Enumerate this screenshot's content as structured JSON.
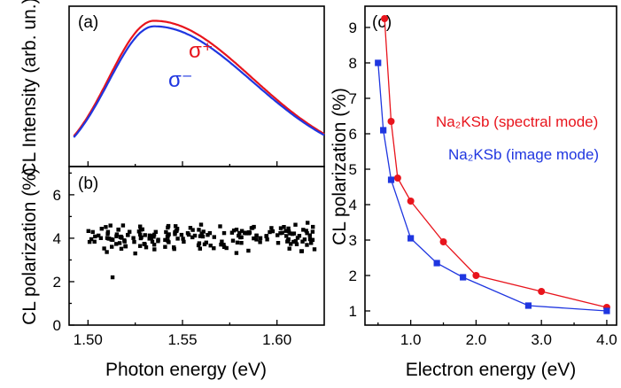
{
  "colors": {
    "red": "#e8141c",
    "blue": "#1f36e0",
    "black": "#000000"
  },
  "panels": {
    "a": {
      "label": "(a)",
      "ylabel": "CL Intensity (arb. un.)",
      "sigma_plus": "σ⁺",
      "sigma_minus": "σ⁻"
    },
    "b": {
      "label": "(b)",
      "ylabel": "CL polarization (%)",
      "xlabel": "Photon energy (eV)"
    },
    "c": {
      "label": "(c)",
      "ylabel": "CL polarization (%)",
      "xlabel": "Electron energy (eV)"
    }
  },
  "chart_data": [
    {
      "panel": "a",
      "type": "line",
      "xlim": [
        1.49,
        1.625
      ],
      "xticks": [
        1.5,
        1.55,
        1.6
      ],
      "series": [
        {
          "name": "σ⁺",
          "color": "#e8141c",
          "peak_x": 1.535,
          "peak_y": 1.0,
          "width_left": 0.024,
          "width_right": 0.052
        },
        {
          "name": "σ⁻",
          "color": "#1f36e0",
          "peak_x": 1.535,
          "peak_y": 0.962,
          "width_left": 0.024,
          "width_right": 0.052
        }
      ]
    },
    {
      "panel": "b",
      "type": "scatter",
      "xlim": [
        1.49,
        1.625
      ],
      "ylim": [
        0,
        7.3
      ],
      "xticks": [
        "1.50",
        "1.55",
        "1.60"
      ],
      "yticks": [
        "0",
        "2",
        "4",
        "6"
      ],
      "points_mean": 4.1,
      "points_spread": 0.3,
      "x_range": [
        1.5,
        1.62
      ],
      "point_count": 190,
      "outliers": [
        [
          1.513,
          2.2
        ],
        [
          1.525,
          3.3
        ]
      ]
    },
    {
      "panel": "c",
      "type": "line",
      "xlim": [
        0.3,
        4.15
      ],
      "ylim": [
        0.6,
        9.6
      ],
      "xticks": [
        "1.0",
        "2.0",
        "3.0",
        "4.0"
      ],
      "yticks": [
        "1",
        "2",
        "3",
        "4",
        "5",
        "6",
        "7",
        "8",
        "9"
      ],
      "series": [
        {
          "name": "Na₂KSb (spectral mode)",
          "color": "#e8141c",
          "marker": "circle",
          "x": [
            0.6,
            0.7,
            0.8,
            1.0,
            1.5,
            2.0,
            3.0,
            4.0
          ],
          "y": [
            9.25,
            6.35,
            4.75,
            4.1,
            2.95,
            2.0,
            1.55,
            1.1
          ]
        },
        {
          "name": "Na₂KSb (image mode)",
          "color": "#1f36e0",
          "marker": "square",
          "x": [
            0.5,
            0.58,
            0.7,
            1.0,
            1.4,
            1.8,
            2.8,
            4.0
          ],
          "y": [
            8.0,
            6.1,
            4.7,
            3.05,
            2.35,
            1.95,
            1.15,
            1.0
          ]
        }
      ]
    }
  ]
}
